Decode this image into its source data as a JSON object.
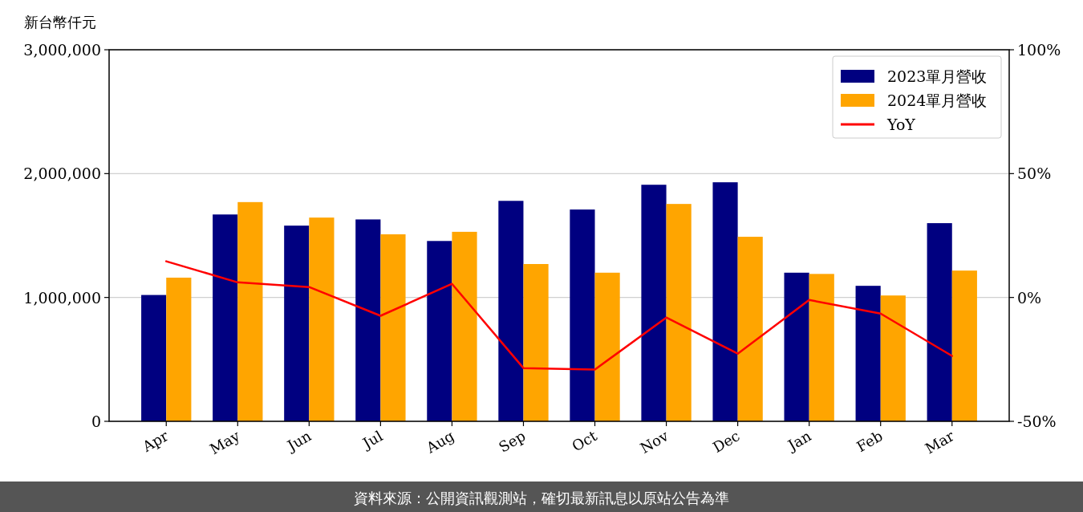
{
  "chart_data": {
    "type": "bar",
    "ylabel": "新台幣仟元",
    "categories": [
      "Apr",
      "May",
      "Jun",
      "Jul",
      "Aug",
      "Sep",
      "Oct",
      "Nov",
      "Dec",
      "Jan",
      "Feb",
      "Mar"
    ],
    "series": [
      {
        "name": "2023單月營收",
        "color": "#000080",
        "values": [
          1020000,
          1670000,
          1580000,
          1630000,
          1456000,
          1780000,
          1710000,
          1910000,
          1930000,
          1200000,
          1094000,
          1600000
        ]
      },
      {
        "name": "2024單月營收",
        "color": "#ffa500",
        "values": [
          1160000,
          1770000,
          1645000,
          1510000,
          1530000,
          1270000,
          1200000,
          1755000,
          1490000,
          1190000,
          1016000,
          1217000
        ]
      },
      {
        "name": "YoY",
        "type": "line",
        "axis": "y2",
        "color": "#ff0000",
        "values": [
          14.6,
          6.1,
          4.2,
          -7.4,
          5.5,
          -28.5,
          -29.1,
          -8.1,
          -22.7,
          -1.0,
          -6.5,
          -23.6
        ]
      }
    ],
    "ylim": [
      0,
      3000000
    ],
    "yticks": [
      {
        "value": 0,
        "label": "0"
      },
      {
        "value": 1000000,
        "label": "1,000,000"
      },
      {
        "value": 2000000,
        "label": "2,000,000"
      },
      {
        "value": 3000000,
        "label": "3,000,000"
      }
    ],
    "y2lim": [
      -50,
      100
    ],
    "y2ticks": [
      {
        "value": -50,
        "label": "-50%"
      },
      {
        "value": 0,
        "label": "0%"
      },
      {
        "value": 50,
        "label": "50%"
      },
      {
        "value": 100,
        "label": "100%"
      }
    ],
    "grid": "y",
    "legend": "top right",
    "annotations": [
      "資料來源：公開資訊觀測站，確切最新訊息以原站公告為準"
    ]
  }
}
